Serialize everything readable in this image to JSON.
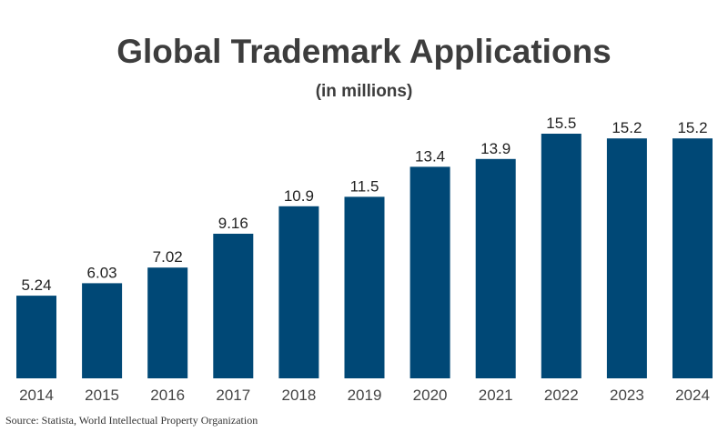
{
  "title": "Global Trademark Applications",
  "subtitle": "(in millions)",
  "source": "Source: Statista, World Intellectual Property Organization",
  "colors": {
    "bar": "#004876",
    "text": "#222222",
    "axis_text": "#444444"
  },
  "chart_data": {
    "type": "bar",
    "title": "Global Trademark Applications",
    "subtitle": "(in millions)",
    "xlabel": "",
    "ylabel": "",
    "categories": [
      "2014",
      "2015",
      "2016",
      "2017",
      "2018",
      "2019",
      "2020",
      "2021",
      "2022",
      "2023",
      "2024"
    ],
    "values": [
      5.24,
      6.03,
      7.02,
      9.16,
      10.9,
      11.5,
      13.4,
      13.9,
      15.5,
      15.2,
      15.2
    ],
    "labels": [
      "5.24",
      "6.03",
      "7.02",
      "9.16",
      "10.9",
      "11.5",
      "13.4",
      "13.9",
      "15.5",
      "15.2",
      "15.2"
    ],
    "ylim": [
      0,
      15.5
    ],
    "grid": false,
    "legend": "none"
  }
}
